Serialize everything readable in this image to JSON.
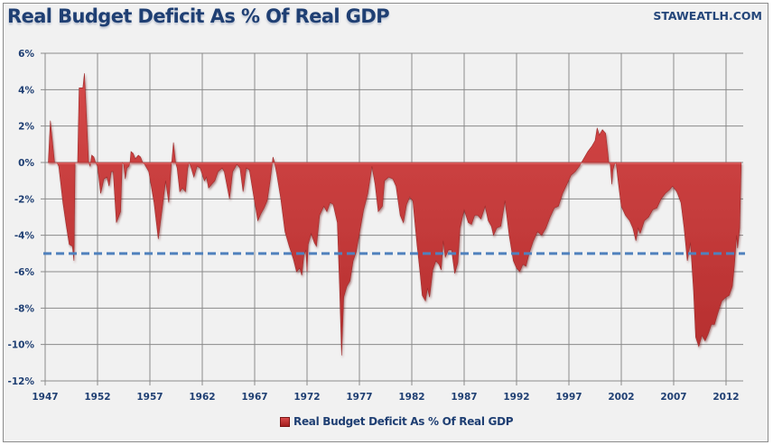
{
  "header": {
    "title": "Real Budget Deficit As % Of Real GDP",
    "brand": "STAWEATLH.COM"
  },
  "chart_data": {
    "type": "area",
    "title": "Real Budget Deficit As % Of Real GDP",
    "xlabel": "",
    "ylabel": "",
    "xlim": [
      1947,
      2013.6
    ],
    "ylim": [
      -12,
      6
    ],
    "grid": true,
    "legend_position": "bottom-center",
    "x_tick_labels": [
      "1947",
      "1952",
      "1957",
      "1962",
      "1967",
      "1972",
      "1977",
      "1982",
      "1987",
      "1992",
      "1997",
      "2002",
      "2007",
      "2012"
    ],
    "y_tick_labels": [
      "6%",
      "4%",
      "2%",
      "0%",
      "-2%",
      "-4%",
      "-6%",
      "-8%",
      "-10%",
      "-12%"
    ],
    "y_ticks": [
      6,
      4,
      2,
      0,
      -2,
      -4,
      -6,
      -8,
      -10,
      -12
    ],
    "reference_line": {
      "value": -5,
      "style": "dashed",
      "color": "#4f81bd"
    },
    "series": [
      {
        "name": "Real Budget Deficit As % Of Real GDP",
        "color": "#c83a3a",
        "points": [
          [
            1947.3,
            0
          ],
          [
            1947.5,
            2.3
          ],
          [
            1947.9,
            0
          ],
          [
            1948.1,
            0
          ],
          [
            1948.3,
            -0.2
          ],
          [
            1948.7,
            -2.2
          ],
          [
            1949.0,
            -3.4
          ],
          [
            1949.3,
            -4.5
          ],
          [
            1949.6,
            -4.6
          ],
          [
            1949.75,
            -5.4
          ],
          [
            1949.85,
            0
          ],
          [
            1950.1,
            0
          ],
          [
            1950.25,
            4.1
          ],
          [
            1950.6,
            4.1
          ],
          [
            1950.75,
            4.9
          ],
          [
            1951.15,
            0
          ],
          [
            1951.3,
            -0.2
          ],
          [
            1951.45,
            0.4
          ],
          [
            1951.65,
            0.3
          ],
          [
            1951.8,
            0
          ],
          [
            1952.0,
            -0.2
          ],
          [
            1952.3,
            -1.7
          ],
          [
            1952.6,
            -0.9
          ],
          [
            1952.9,
            -0.8
          ],
          [
            1953.1,
            -1.3
          ],
          [
            1953.3,
            -0.5
          ],
          [
            1953.5,
            -0.5
          ],
          [
            1953.8,
            -3.3
          ],
          [
            1954.2,
            -2.7
          ],
          [
            1954.35,
            0
          ],
          [
            1954.5,
            -0.1
          ],
          [
            1954.65,
            -0.9
          ],
          [
            1954.8,
            -0.3
          ],
          [
            1955.0,
            -0.2
          ],
          [
            1955.1,
            0
          ],
          [
            1955.2,
            0.6
          ],
          [
            1955.4,
            0.5
          ],
          [
            1955.6,
            0.2
          ],
          [
            1955.9,
            0.4
          ],
          [
            1956.1,
            0.3
          ],
          [
            1956.3,
            0
          ],
          [
            1956.5,
            -0.1
          ],
          [
            1956.9,
            -0.5
          ],
          [
            1957.4,
            -2.2
          ],
          [
            1957.8,
            -4.2
          ],
          [
            1958.2,
            -2.4
          ],
          [
            1958.5,
            -1.0
          ],
          [
            1958.8,
            -2.2
          ],
          [
            1959.05,
            0
          ],
          [
            1959.1,
            0.1
          ],
          [
            1959.25,
            1.1
          ],
          [
            1959.45,
            0
          ],
          [
            1959.6,
            -0.3
          ],
          [
            1959.85,
            -1.6
          ],
          [
            1960.1,
            -1.4
          ],
          [
            1960.4,
            -1.6
          ],
          [
            1960.6,
            -0.3
          ],
          [
            1960.75,
            0
          ],
          [
            1960.9,
            -0.2
          ],
          [
            1961.2,
            -0.8
          ],
          [
            1961.5,
            -0.2
          ],
          [
            1961.8,
            -0.3
          ],
          [
            1962.2,
            -1.0
          ],
          [
            1962.4,
            -0.8
          ],
          [
            1962.6,
            -1.4
          ],
          [
            1962.9,
            -1.2
          ],
          [
            1963.2,
            -1.0
          ],
          [
            1963.5,
            -0.5
          ],
          [
            1963.9,
            -0.3
          ],
          [
            1964.1,
            -0.5
          ],
          [
            1964.6,
            -2.0
          ],
          [
            1964.9,
            -0.5
          ],
          [
            1965.3,
            -0.1
          ],
          [
            1965.6,
            -0.3
          ],
          [
            1965.9,
            -1.6
          ],
          [
            1966.2,
            -0.3
          ],
          [
            1966.5,
            -0.4
          ],
          [
            1966.9,
            -1.8
          ],
          [
            1967.3,
            -3.2
          ],
          [
            1967.6,
            -2.8
          ],
          [
            1967.9,
            -2.5
          ],
          [
            1968.2,
            -2.1
          ],
          [
            1968.5,
            -0.9
          ],
          [
            1968.75,
            0.3
          ],
          [
            1968.9,
            0
          ],
          [
            1969.1,
            -0.6
          ],
          [
            1969.5,
            -2.0
          ],
          [
            1969.9,
            -3.8
          ],
          [
            1970.3,
            -4.6
          ],
          [
            1970.7,
            -5.3
          ],
          [
            1971.0,
            -6.0
          ],
          [
            1971.3,
            -5.8
          ],
          [
            1971.5,
            -6.2
          ],
          [
            1971.7,
            -5.1
          ],
          [
            1971.9,
            -4.8
          ],
          [
            1972.0,
            -6.0
          ],
          [
            1972.1,
            -4.5
          ],
          [
            1972.4,
            -3.9
          ],
          [
            1972.7,
            -4.4
          ],
          [
            1972.9,
            -4.6
          ],
          [
            1973.2,
            -2.9
          ],
          [
            1973.6,
            -2.4
          ],
          [
            1973.9,
            -2.7
          ],
          [
            1974.2,
            -2.2
          ],
          [
            1974.5,
            -2.3
          ],
          [
            1974.9,
            -3.3
          ],
          [
            1975.1,
            -6.7
          ],
          [
            1975.3,
            -10.6
          ],
          [
            1975.5,
            -7.4
          ],
          [
            1975.8,
            -6.8
          ],
          [
            1976.1,
            -6.5
          ],
          [
            1976.4,
            -5.4
          ],
          [
            1976.7,
            -4.9
          ],
          [
            1977.0,
            -3.9
          ],
          [
            1977.4,
            -2.6
          ],
          [
            1977.8,
            -1.7
          ],
          [
            1978.2,
            -0.2
          ],
          [
            1978.5,
            -1.2
          ],
          [
            1978.8,
            -2.7
          ],
          [
            1979.2,
            -2.4
          ],
          [
            1979.4,
            -1.0
          ],
          [
            1979.8,
            -0.8
          ],
          [
            1980.2,
            -0.9
          ],
          [
            1980.5,
            -1.3
          ],
          [
            1980.9,
            -2.9
          ],
          [
            1981.2,
            -3.3
          ],
          [
            1981.5,
            -2.3
          ],
          [
            1981.8,
            -1.9
          ],
          [
            1982.1,
            -2.1
          ],
          [
            1982.5,
            -4.5
          ],
          [
            1982.8,
            -6.1
          ],
          [
            1983.0,
            -7.3
          ],
          [
            1983.3,
            -7.6
          ],
          [
            1983.5,
            -6.9
          ],
          [
            1983.7,
            -7.4
          ],
          [
            1984.0,
            -5.9
          ],
          [
            1984.3,
            -5.4
          ],
          [
            1984.6,
            -5.6
          ],
          [
            1984.8,
            -5.9
          ],
          [
            1985.0,
            -4.3
          ],
          [
            1985.2,
            -5.2
          ],
          [
            1985.5,
            -4.8
          ],
          [
            1985.8,
            -4.8
          ],
          [
            1986.1,
            -6.1
          ],
          [
            1986.4,
            -5.5
          ],
          [
            1986.6,
            -3.6
          ],
          [
            1987.0,
            -2.6
          ],
          [
            1987.4,
            -3.3
          ],
          [
            1987.7,
            -3.4
          ],
          [
            1988.0,
            -2.9
          ],
          [
            1988.3,
            -2.9
          ],
          [
            1988.6,
            -3.1
          ],
          [
            1989.0,
            -2.4
          ],
          [
            1989.3,
            -3.2
          ],
          [
            1989.6,
            -3.5
          ],
          [
            1989.8,
            -4.0
          ],
          [
            1990.1,
            -3.6
          ],
          [
            1990.5,
            -3.5
          ],
          [
            1990.9,
            -2.1
          ],
          [
            1991.3,
            -4.0
          ],
          [
            1991.7,
            -5.4
          ],
          [
            1992.0,
            -5.8
          ],
          [
            1992.3,
            -6.0
          ],
          [
            1992.6,
            -5.6
          ],
          [
            1992.9,
            -5.7
          ],
          [
            1993.2,
            -5.0
          ],
          [
            1993.6,
            -4.3
          ],
          [
            1994.0,
            -3.8
          ],
          [
            1994.4,
            -4.0
          ],
          [
            1994.8,
            -3.6
          ],
          [
            1995.2,
            -3.0
          ],
          [
            1995.6,
            -2.5
          ],
          [
            1996.0,
            -2.4
          ],
          [
            1996.4,
            -1.7
          ],
          [
            1996.8,
            -1.2
          ],
          [
            1997.2,
            -0.7
          ],
          [
            1997.6,
            -0.5
          ],
          [
            1998.0,
            -0.2
          ],
          [
            1998.2,
            0
          ],
          [
            1998.4,
            0.2
          ],
          [
            1998.8,
            0.6
          ],
          [
            1999.2,
            0.9
          ],
          [
            1999.5,
            1.2
          ],
          [
            1999.7,
            1.9
          ],
          [
            1999.9,
            1.5
          ],
          [
            2000.2,
            1.8
          ],
          [
            2000.5,
            1.6
          ],
          [
            2000.7,
            0.6
          ],
          [
            2000.8,
            0
          ],
          [
            2000.95,
            -0.1
          ],
          [
            2001.1,
            -1.2
          ],
          [
            2001.2,
            -0.4
          ],
          [
            2001.35,
            -0.1
          ],
          [
            2001.5,
            0
          ],
          [
            2001.7,
            -1.0
          ],
          [
            2002.0,
            -2.4
          ],
          [
            2002.4,
            -2.9
          ],
          [
            2002.8,
            -3.2
          ],
          [
            2003.1,
            -3.6
          ],
          [
            2003.4,
            -4.3
          ],
          [
            2003.6,
            -3.6
          ],
          [
            2003.8,
            -3.9
          ],
          [
            2004.2,
            -3.2
          ],
          [
            2004.6,
            -3.0
          ],
          [
            2005.0,
            -2.6
          ],
          [
            2005.4,
            -2.5
          ],
          [
            2005.8,
            -2.0
          ],
          [
            2006.2,
            -1.7
          ],
          [
            2006.6,
            -1.5
          ],
          [
            2006.9,
            -1.3
          ],
          [
            2007.3,
            -1.6
          ],
          [
            2007.7,
            -2.2
          ],
          [
            2008.0,
            -3.6
          ],
          [
            2008.3,
            -5.4
          ],
          [
            2008.6,
            -4.4
          ],
          [
            2008.9,
            -7.0
          ],
          [
            2009.1,
            -9.6
          ],
          [
            2009.4,
            -10.1
          ],
          [
            2009.7,
            -9.5
          ],
          [
            2010.0,
            -9.8
          ],
          [
            2010.3,
            -9.4
          ],
          [
            2010.6,
            -8.9
          ],
          [
            2010.9,
            -8.9
          ],
          [
            2011.2,
            -8.3
          ],
          [
            2011.6,
            -7.6
          ],
          [
            2012.0,
            -7.4
          ],
          [
            2012.3,
            -7.3
          ],
          [
            2012.6,
            -6.8
          ],
          [
            2012.8,
            -5.6
          ],
          [
            2013.0,
            -4.0
          ],
          [
            2013.1,
            -4.7
          ],
          [
            2013.3,
            -3.6
          ],
          [
            2013.45,
            0
          ]
        ]
      }
    ]
  },
  "legend": {
    "label": "Real Budget Deficit As % Of Real GDP"
  }
}
